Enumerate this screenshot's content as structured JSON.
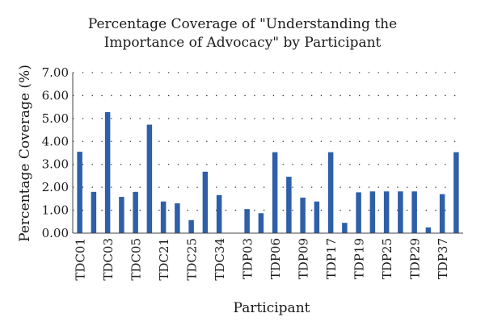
{
  "chart_data": {
    "type": "bar",
    "title_lines": [
      "Percentage Coverage of \"Understanding the",
      "Importance of Advocacy\" by Participant"
    ],
    "xlabel": "Participant",
    "ylabel": "Percentage Coverage (%)",
    "ylim": [
      0,
      7
    ],
    "yticks": [
      "0.00",
      "1.00",
      "2.00",
      "3.00",
      "4.00",
      "5.00",
      "6.00",
      "7.00"
    ],
    "grid": "dotted horizontal",
    "bar_color": "#2e5fa8",
    "tick_labels": [
      "TDC01",
      "TDC03",
      "TDC05",
      "TDC21",
      "TDC25",
      "TDC34",
      "TDP03",
      "TDP06",
      "TDP09",
      "TDP17",
      "TDP19",
      "TDP25",
      "TDP29",
      "TDP37"
    ],
    "values": [
      3.55,
      1.8,
      5.28,
      1.58,
      1.8,
      4.73,
      1.38,
      1.3,
      0.57,
      2.68,
      1.66,
      0.0,
      1.05,
      0.87,
      3.53,
      2.46,
      1.55,
      1.38,
      3.53,
      0.45,
      1.78,
      1.82,
      1.82,
      1.82,
      1.82,
      0.25,
      1.7,
      3.53
    ]
  }
}
